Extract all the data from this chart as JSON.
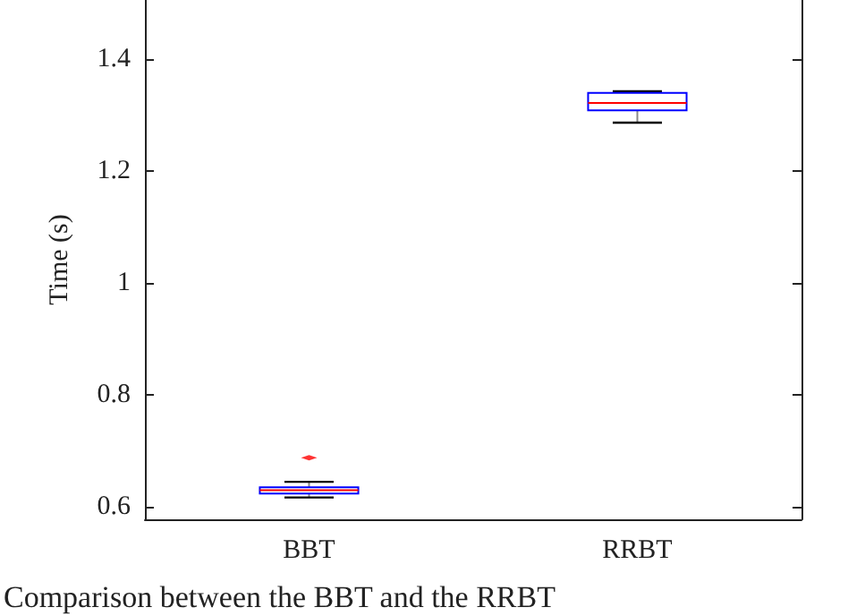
{
  "chart_data": {
    "type": "box",
    "ylabel": "Time (s)",
    "categories": [
      "BBT",
      "RRBT"
    ],
    "boxes": [
      {
        "low": 0.617,
        "q1": 0.624,
        "median": 0.63,
        "q3": 0.635,
        "high": 0.645,
        "outliers": [
          0.688
        ]
      },
      {
        "low": 1.286,
        "q1": 1.308,
        "median": 1.321,
        "q3": 1.339,
        "high": 1.342
      }
    ],
    "color": "#0000ff",
    "ylim": [
      0.578,
      1.505
    ],
    "yticks": [
      0.6,
      0.8,
      1,
      1.2,
      1.4
    ],
    "grid": false,
    "annotations": [
      "Comparison between the BBT and the RRBT"
    ]
  }
}
